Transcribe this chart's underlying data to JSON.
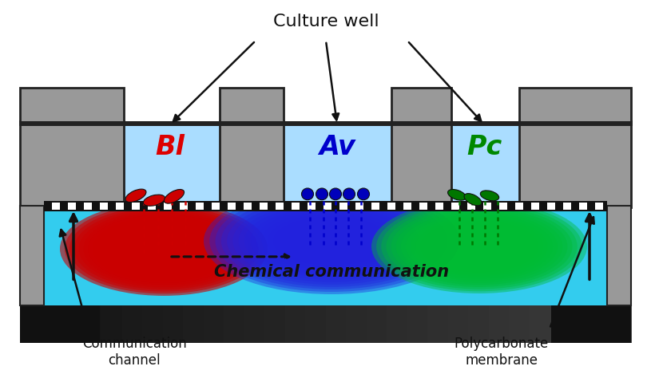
{
  "title": "Culture well",
  "bg_color": "#ffffff",
  "channel_color": "#33ccee",
  "plate_color": "#999999",
  "plate_edge": "#222222",
  "base_color": "#111111",
  "well_fill": "#aaddff",
  "Bl_label": "Bl",
  "Av_label": "Av",
  "Pc_label": "Pc",
  "Bl_color": "#dd0000",
  "Av_color": "#0000cc",
  "Pc_color": "#008800",
  "chemical_comm_text": "Chemical communication",
  "comm_channel_text": "Communication\nchannel",
  "poly_membrane_text": "Polycarbonate\nmembrane"
}
